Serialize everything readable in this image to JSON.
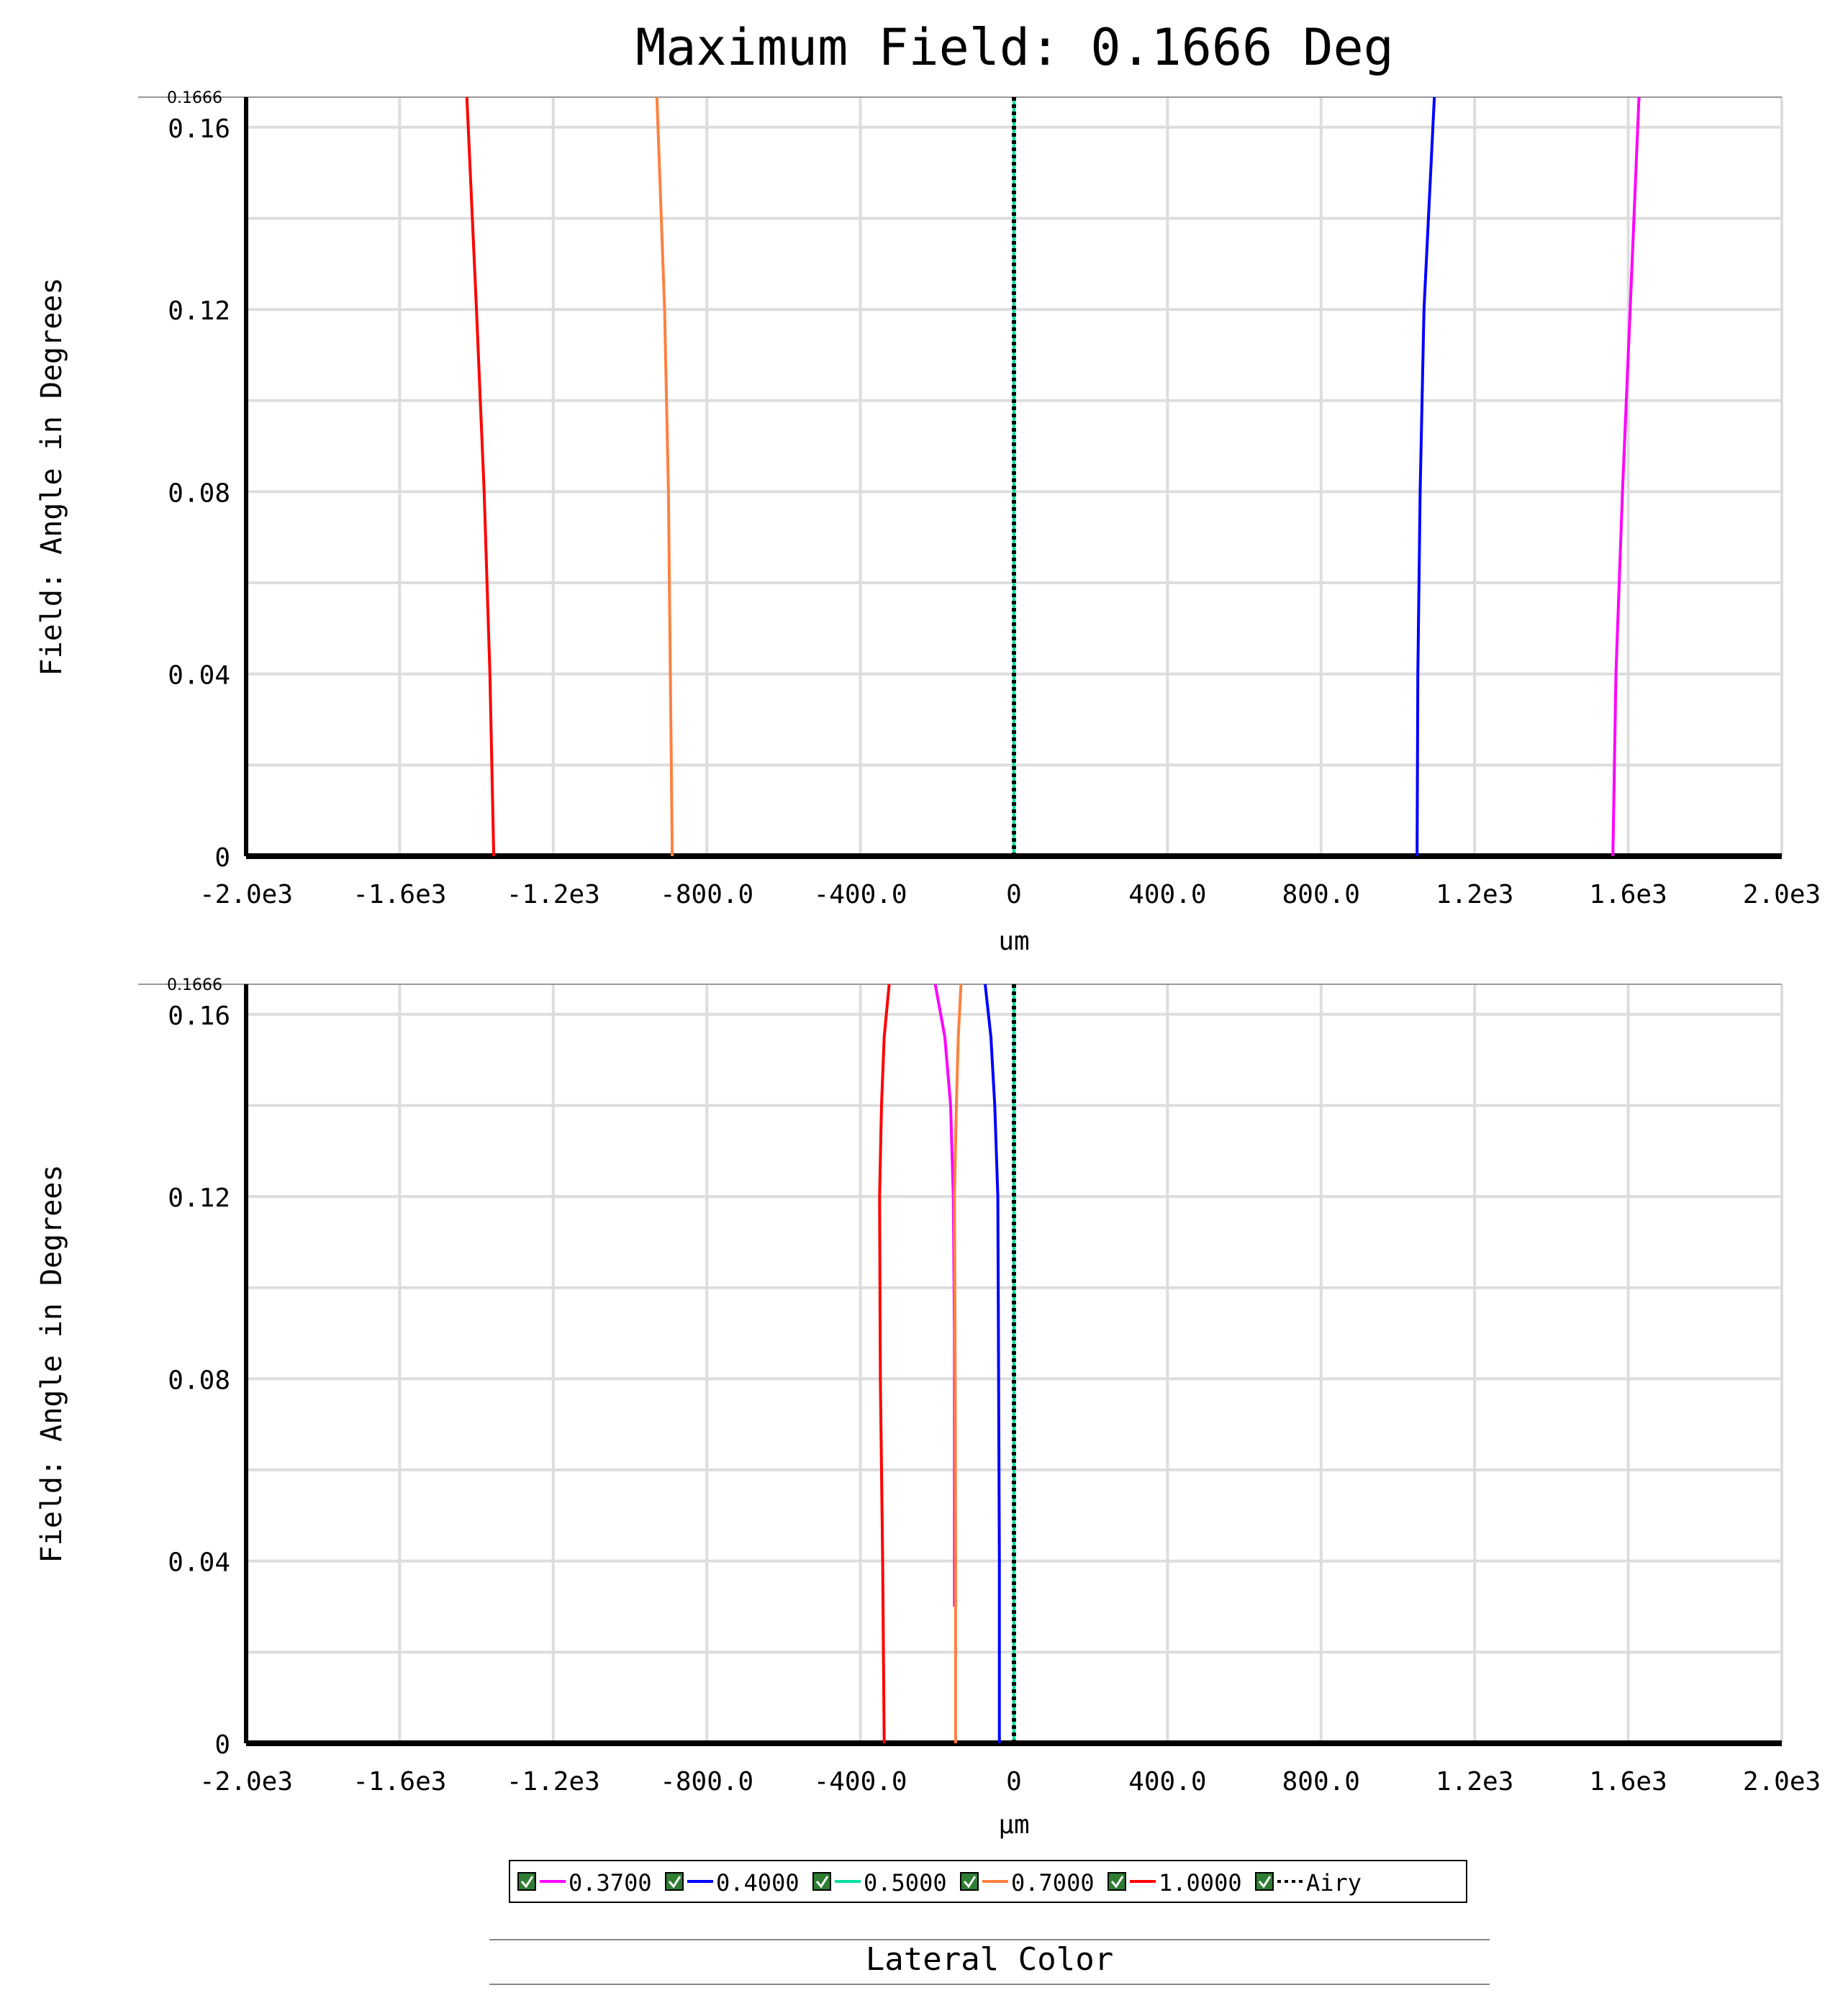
{
  "title": "Maximum Field: 0.1666 Deg",
  "footer_label": "Lateral Color",
  "legend": [
    {
      "label": "0.3700",
      "color": "#ff00ff",
      "style": "solid",
      "checked": true
    },
    {
      "label": "0.4000",
      "color": "#0000ff",
      "style": "solid",
      "checked": true
    },
    {
      "label": "0.5000",
      "color": "#00e0a0",
      "style": "solid",
      "checked": true
    },
    {
      "label": "0.7000",
      "color": "#ff8040",
      "style": "solid",
      "checked": true
    },
    {
      "label": "1.0000",
      "color": "#ff0000",
      "style": "solid",
      "checked": true
    },
    {
      "label": "Airy",
      "color": "#000000",
      "style": "dotted",
      "checked": true
    }
  ],
  "chart_data": [
    {
      "type": "line",
      "xlabel": "um",
      "ylabel": "Field: Angle in Degrees",
      "xlim": [
        -2000,
        2000
      ],
      "ylim": [
        0,
        0.1666
      ],
      "ymax_label": "0.1666",
      "xticks": [
        -2000,
        -1600,
        -1200,
        -800,
        -400,
        0,
        400,
        800,
        1200,
        1600,
        2000
      ],
      "xtick_labels": [
        "-2.0e3",
        "-1.6e3",
        "-1.2e3",
        "-800.0",
        "-400.0",
        "0",
        "400.0",
        "800.0",
        "1.2e3",
        "1.6e3",
        "2.0e3"
      ],
      "yticks": [
        0,
        0.04,
        0.08,
        0.12,
        0.16
      ],
      "ytick_labels": [
        "0",
        "0.04",
        "0.08",
        "0.12",
        "0.16"
      ],
      "grid": true,
      "series": [
        {
          "name": "0.3700",
          "color": "#ff00ff",
          "y": [
            0,
            0.04,
            0.08,
            0.12,
            0.1666
          ],
          "x": [
            1560,
            1568,
            1585,
            1605,
            1628
          ]
        },
        {
          "name": "0.4000",
          "color": "#0000ff",
          "y": [
            0,
            0.04,
            0.08,
            0.12,
            0.1666
          ],
          "x": [
            1050,
            1052,
            1058,
            1068,
            1095
          ]
        },
        {
          "name": "0.5000",
          "color": "#00e0a0",
          "y": [
            0,
            0.04,
            0.08,
            0.12,
            0.1666
          ],
          "x": [
            0,
            0,
            0,
            0,
            0
          ]
        },
        {
          "name": "0.7000",
          "color": "#ff8040",
          "y": [
            0,
            0.04,
            0.08,
            0.12,
            0.1666
          ],
          "x": [
            -890,
            -895,
            -900,
            -910,
            -930
          ]
        },
        {
          "name": "1.0000",
          "color": "#ff0000",
          "y": [
            0,
            0.04,
            0.08,
            0.12,
            0.1666
          ],
          "x": [
            -1355,
            -1365,
            -1380,
            -1400,
            -1425
          ]
        },
        {
          "name": "Airy",
          "color": "#000000",
          "dotted": true,
          "y": [
            0,
            0.1666
          ],
          "x": [
            0,
            0
          ]
        }
      ]
    },
    {
      "type": "line",
      "xlabel": "µm",
      "ylabel": "Field: Angle in Degrees",
      "xlim": [
        -2000,
        2000
      ],
      "ylim": [
        0,
        0.1666
      ],
      "ymax_label": "0.1666",
      "xticks": [
        -2000,
        -1600,
        -1200,
        -800,
        -400,
        0,
        400,
        800,
        1200,
        1600,
        2000
      ],
      "xtick_labels": [
        "-2.0e3",
        "-1.6e3",
        "-1.2e3",
        "-800.0",
        "-400.0",
        "0",
        "400.0",
        "800.0",
        "1.2e3",
        "1.6e3",
        "2.0e3"
      ],
      "yticks": [
        0,
        0.04,
        0.08,
        0.12,
        0.16
      ],
      "ytick_labels": [
        "0",
        "0.04",
        "0.08",
        "0.12",
        "0.16"
      ],
      "grid": true,
      "series": [
        {
          "name": "0.3700",
          "color": "#ff00ff",
          "y": [
            0.03,
            0.06,
            0.09,
            0.12,
            0.14,
            0.155,
            0.1666
          ],
          "x": [
            -155,
            -155,
            -155,
            -158,
            -165,
            -180,
            -205
          ]
        },
        {
          "name": "0.4000",
          "color": "#0000ff",
          "y": [
            0,
            0.04,
            0.08,
            0.12,
            0.14,
            0.155,
            0.1666
          ],
          "x": [
            -38,
            -38,
            -40,
            -42,
            -50,
            -60,
            -75
          ]
        },
        {
          "name": "0.5000",
          "color": "#00e0a0",
          "y": [
            0,
            0.1666
          ],
          "x": [
            0,
            0
          ]
        },
        {
          "name": "0.7000",
          "color": "#ff8040",
          "y": [
            0,
            0.04,
            0.08,
            0.12,
            0.14,
            0.155,
            0.1666
          ],
          "x": [
            -152,
            -152,
            -153,
            -155,
            -150,
            -145,
            -138
          ]
        },
        {
          "name": "1.0000",
          "color": "#ff0000",
          "y": [
            0,
            0.04,
            0.08,
            0.12,
            0.14,
            0.155,
            0.1666
          ],
          "x": [
            -338,
            -342,
            -348,
            -350,
            -345,
            -338,
            -325
          ]
        },
        {
          "name": "Airy",
          "color": "#000000",
          "dotted": true,
          "y": [
            0,
            0.1666
          ],
          "x": [
            0,
            0
          ]
        }
      ]
    }
  ]
}
